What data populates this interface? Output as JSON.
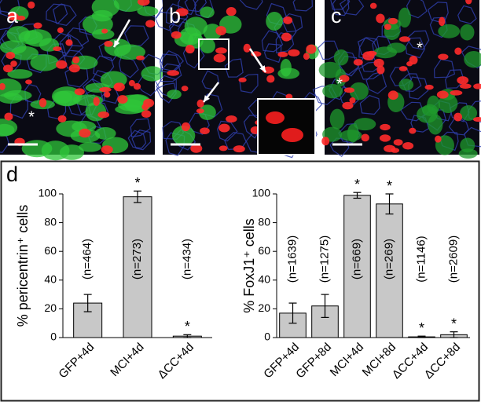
{
  "panels": [
    {
      "label": "a",
      "annotations": [
        "*"
      ]
    },
    {
      "label": "b",
      "annotations": []
    },
    {
      "label": "c",
      "annotations": [
        "*",
        "*"
      ]
    }
  ],
  "chart_panel_label": "d",
  "chart_data": [
    {
      "type": "bar",
      "y_label": "% pericentrin⁺ cells",
      "categories": [
        "GFP+4d",
        "MCI+4d",
        "ΔCC+4d"
      ],
      "values": [
        24,
        98,
        1
      ],
      "errors": [
        6,
        4,
        1
      ],
      "n_labels": [
        "(n=464)",
        "(n=273)",
        "(n=434)"
      ],
      "significance": [
        null,
        "*",
        "*"
      ],
      "color": "#c8c8c8",
      "ylim": [
        0,
        100
      ],
      "yticks": [
        0,
        20,
        40,
        60,
        80,
        100
      ]
    },
    {
      "type": "bar",
      "y_label": "% FoxJ1⁺ cells",
      "categories": [
        "GFP+4d",
        "GFP+8d",
        "MCI+4d",
        "MCI+8d",
        "ΔCC+4d",
        "ΔCC+8d"
      ],
      "values": [
        17,
        22,
        99,
        93,
        0.5,
        2
      ],
      "errors": [
        7,
        8,
        2,
        7,
        0.5,
        2
      ],
      "n_labels": [
        "(n=1639)",
        "(n=1275)",
        "(n=669)",
        "(n=269)",
        "(n=1146)",
        "(n=2609)"
      ],
      "significance": [
        null,
        null,
        "*",
        "*",
        "*",
        "*"
      ],
      "color": "#c8c8c8",
      "ylim": [
        0,
        100
      ],
      "yticks": [
        0,
        20,
        40,
        60,
        80,
        100
      ]
    }
  ]
}
